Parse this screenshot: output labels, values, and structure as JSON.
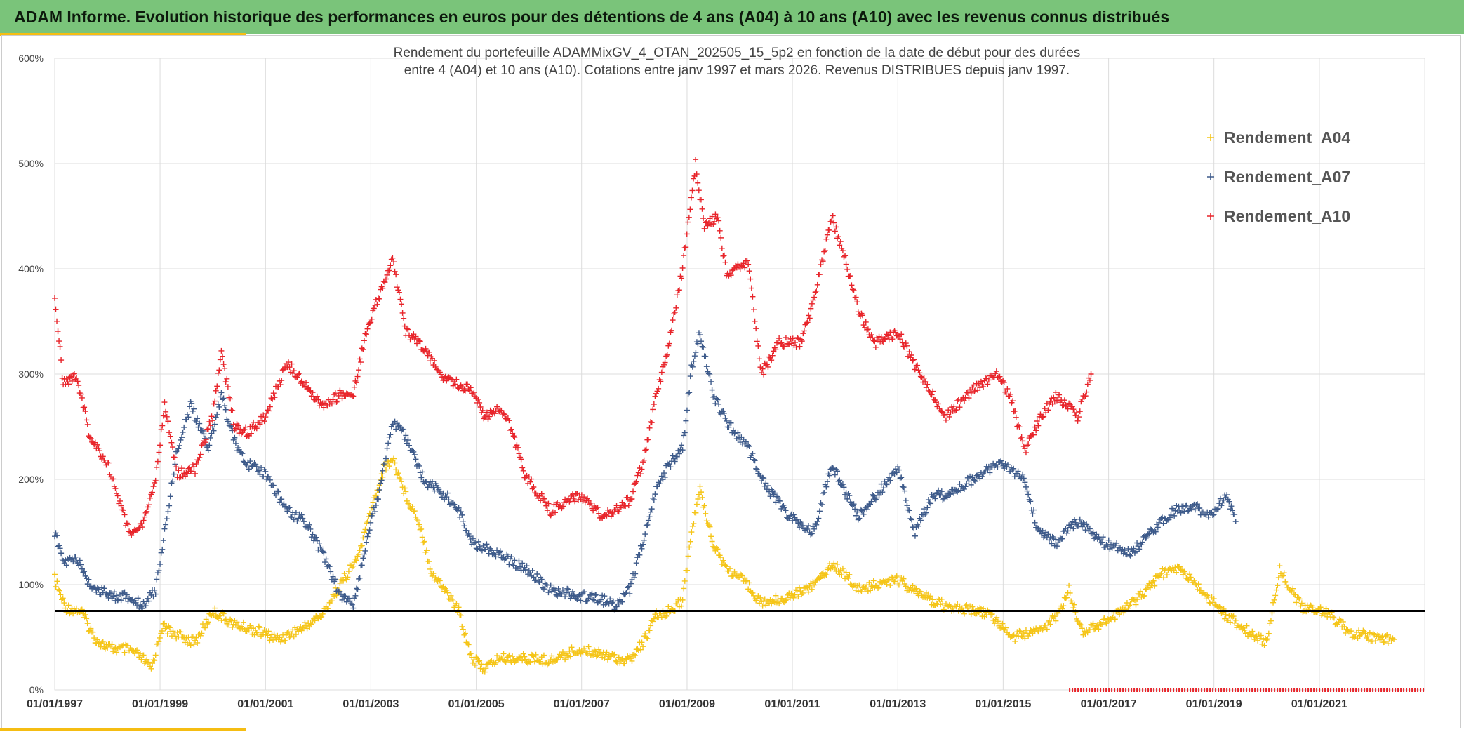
{
  "banner": {
    "title": "ADAM Informe. Evolution historique des performances en euros pour des détentions de 4 ans (A04) à 10 ans (A10) avec les revenus connus distribués"
  },
  "chart_data": {
    "type": "scatter",
    "title_line1": "Rendement du portefeuille ADAMMixGV_4_OTAN_202505_15_5p2  en fonction de la date de début pour des durées",
    "title_line2": "entre 4 (A04) et 10 ans (A10). Cotations entre janv 1997 et mars 2026. Revenus DISTRIBUES depuis janv 1997.",
    "x_range": [
      "1997-01-01",
      "2023-01-01"
    ],
    "ylim": [
      0,
      600
    ],
    "y_ticks": [
      0,
      100,
      200,
      300,
      400,
      500,
      600
    ],
    "y_tick_labels": [
      "0%",
      "100%",
      "200%",
      "300%",
      "400%",
      "500%",
      "600%"
    ],
    "x_tick_labels": [
      "01/01/1997",
      "01/01/1999",
      "01/01/2001",
      "01/01/2003",
      "01/01/2005",
      "01/01/2007",
      "01/01/2009",
      "01/01/2011",
      "01/01/2013",
      "01/01/2015",
      "01/01/2017",
      "01/01/2019",
      "01/01/2021"
    ],
    "grid": true,
    "legend_position": "top-right",
    "reference_line": {
      "y": 75,
      "color": "#000000"
    },
    "series": [
      {
        "name": "Rendement_A04",
        "color": "#f5c518",
        "points": [
          [
            "1997-01-01",
            105
          ],
          [
            "1997-03-15",
            78
          ],
          [
            "1997-07-01",
            75
          ],
          [
            "1997-10-01",
            50
          ],
          [
            "1998-01-01",
            40
          ],
          [
            "1998-06-01",
            38
          ],
          [
            "1998-09-01",
            30
          ],
          [
            "1998-11-01",
            20
          ],
          [
            "1999-01-15",
            60
          ],
          [
            "1999-05-01",
            52
          ],
          [
            "1999-09-01",
            45
          ],
          [
            "2000-01-01",
            75
          ],
          [
            "2000-06-01",
            62
          ],
          [
            "2000-12-01",
            55
          ],
          [
            "2001-04-01",
            48
          ],
          [
            "2001-10-01",
            60
          ],
          [
            "2002-02-01",
            72
          ],
          [
            "2002-06-01",
            100
          ],
          [
            "2002-10-01",
            125
          ],
          [
            "2003-01-01",
            170
          ],
          [
            "2003-04-01",
            210
          ],
          [
            "2003-06-01",
            220
          ],
          [
            "2003-09-01",
            185
          ],
          [
            "2003-12-01",
            160
          ],
          [
            "2004-03-01",
            110
          ],
          [
            "2004-06-01",
            95
          ],
          [
            "2004-09-01",
            75
          ],
          [
            "2004-12-01",
            30
          ],
          [
            "2005-03-01",
            20
          ],
          [
            "2005-06-01",
            30
          ],
          [
            "2005-12-01",
            30
          ],
          [
            "2006-06-01",
            28
          ],
          [
            "2006-12-01",
            38
          ],
          [
            "2007-06-01",
            35
          ],
          [
            "2007-09-01",
            30
          ],
          [
            "2007-12-01",
            28
          ],
          [
            "2008-03-01",
            45
          ],
          [
            "2008-06-01",
            70
          ],
          [
            "2008-09-01",
            75
          ],
          [
            "2008-12-01",
            85
          ],
          [
            "2009-02-01",
            150
          ],
          [
            "2009-04-01",
            190
          ],
          [
            "2009-07-01",
            140
          ],
          [
            "2009-10-01",
            115
          ],
          [
            "2010-03-01",
            100
          ],
          [
            "2010-06-01",
            82
          ],
          [
            "2010-12-01",
            88
          ],
          [
            "2011-06-01",
            100
          ],
          [
            "2011-10-01",
            120
          ],
          [
            "2012-01-01",
            110
          ],
          [
            "2012-04-01",
            95
          ],
          [
            "2012-08-01",
            100
          ],
          [
            "2013-01-01",
            105
          ],
          [
            "2013-06-01",
            90
          ],
          [
            "2013-12-01",
            80
          ],
          [
            "2014-06-01",
            75
          ],
          [
            "2014-10-01",
            72
          ],
          [
            "2015-03-01",
            50
          ],
          [
            "2015-09-01",
            55
          ],
          [
            "2016-01-01",
            68
          ],
          [
            "2016-04-01",
            95
          ],
          [
            "2016-07-01",
            55
          ],
          [
            "2016-12-01",
            65
          ],
          [
            "2017-04-01",
            75
          ],
          [
            "2017-08-01",
            88
          ],
          [
            "2018-01-01",
            110
          ],
          [
            "2018-05-01",
            115
          ],
          [
            "2018-09-01",
            100
          ],
          [
            "2019-01-01",
            82
          ],
          [
            "2019-04-01",
            70
          ],
          [
            "2019-09-01",
            55
          ],
          [
            "2020-01-01",
            45
          ],
          [
            "2020-04-01",
            115
          ],
          [
            "2020-09-01",
            78
          ],
          [
            "2021-02-01",
            75
          ],
          [
            "2021-08-01",
            55
          ],
          [
            "2022-01-01",
            50
          ],
          [
            "2022-06-01",
            48
          ]
        ]
      },
      {
        "name": "Rendement_A07",
        "color": "#3d5a8a",
        "points": [
          [
            "1997-01-01",
            150
          ],
          [
            "1997-03-01",
            120
          ],
          [
            "1997-06-01",
            125
          ],
          [
            "1997-09-01",
            100
          ],
          [
            "1998-01-01",
            90
          ],
          [
            "1998-06-01",
            88
          ],
          [
            "1998-09-01",
            80
          ],
          [
            "1998-12-01",
            95
          ],
          [
            "1999-02-01",
            150
          ],
          [
            "1999-05-01",
            230
          ],
          [
            "1999-08-01",
            270
          ],
          [
            "1999-12-01",
            230
          ],
          [
            "2000-03-01",
            280
          ],
          [
            "2000-06-01",
            235
          ],
          [
            "2000-09-01",
            215
          ],
          [
            "2001-01-01",
            205
          ],
          [
            "2001-06-01",
            170
          ],
          [
            "2001-10-01",
            160
          ],
          [
            "2002-02-01",
            130
          ],
          [
            "2002-06-01",
            90
          ],
          [
            "2002-09-01",
            80
          ],
          [
            "2002-12-01",
            140
          ],
          [
            "2003-03-01",
            190
          ],
          [
            "2003-06-01",
            255
          ],
          [
            "2003-09-01",
            240
          ],
          [
            "2004-01-01",
            200
          ],
          [
            "2004-06-01",
            185
          ],
          [
            "2004-09-01",
            170
          ],
          [
            "2004-12-01",
            140
          ],
          [
            "2005-06-01",
            130
          ],
          [
            "2005-12-01",
            115
          ],
          [
            "2006-06-01",
            95
          ],
          [
            "2006-12-01",
            90
          ],
          [
            "2007-06-01",
            85
          ],
          [
            "2007-09-01",
            80
          ],
          [
            "2007-12-01",
            95
          ],
          [
            "2008-03-01",
            140
          ],
          [
            "2008-06-01",
            190
          ],
          [
            "2008-09-01",
            215
          ],
          [
            "2008-12-01",
            230
          ],
          [
            "2009-02-01",
            305
          ],
          [
            "2009-04-01",
            340
          ],
          [
            "2009-07-01",
            280
          ],
          [
            "2009-10-01",
            255
          ],
          [
            "2010-03-01",
            230
          ],
          [
            "2010-06-01",
            200
          ],
          [
            "2010-12-01",
            165
          ],
          [
            "2011-06-01",
            150
          ],
          [
            "2011-10-01",
            215
          ],
          [
            "2012-01-01",
            190
          ],
          [
            "2012-04-01",
            165
          ],
          [
            "2012-08-01",
            185
          ],
          [
            "2013-01-01",
            210
          ],
          [
            "2013-05-01",
            150
          ],
          [
            "2013-09-01",
            185
          ],
          [
            "2014-01-01",
            185
          ],
          [
            "2014-06-01",
            200
          ],
          [
            "2014-12-01",
            215
          ],
          [
            "2015-06-01",
            200
          ],
          [
            "2015-09-01",
            150
          ],
          [
            "2016-01-01",
            140
          ],
          [
            "2016-06-01",
            160
          ],
          [
            "2016-12-01",
            140
          ],
          [
            "2017-06-01",
            130
          ],
          [
            "2017-12-01",
            155
          ],
          [
            "2018-04-01",
            170
          ],
          [
            "2018-08-01",
            175
          ],
          [
            "2018-12-01",
            165
          ],
          [
            "2019-04-01",
            185
          ],
          [
            "2019-06-01",
            160
          ]
        ]
      },
      {
        "name": "Rendement_A10",
        "color": "#e8242a",
        "points": [
          [
            "1997-01-01",
            375
          ],
          [
            "1997-03-01",
            290
          ],
          [
            "1997-06-01",
            300
          ],
          [
            "1997-09-01",
            240
          ],
          [
            "1998-01-01",
            215
          ],
          [
            "1998-06-01",
            150
          ],
          [
            "1998-09-01",
            155
          ],
          [
            "1998-12-01",
            200
          ],
          [
            "1999-02-01",
            270
          ],
          [
            "1999-05-01",
            205
          ],
          [
            "1999-09-01",
            210
          ],
          [
            "2000-01-01",
            260
          ],
          [
            "2000-03-01",
            320
          ],
          [
            "2000-06-01",
            250
          ],
          [
            "2000-09-01",
            245
          ],
          [
            "2001-01-01",
            260
          ],
          [
            "2001-06-01",
            310
          ],
          [
            "2001-10-01",
            290
          ],
          [
            "2002-02-01",
            270
          ],
          [
            "2002-06-01",
            280
          ],
          [
            "2002-09-01",
            280
          ],
          [
            "2002-12-01",
            340
          ],
          [
            "2003-03-01",
            375
          ],
          [
            "2003-06-01",
            410
          ],
          [
            "2003-09-01",
            340
          ],
          [
            "2004-01-01",
            325
          ],
          [
            "2004-06-01",
            295
          ],
          [
            "2004-12-01",
            285
          ],
          [
            "2005-03-01",
            260
          ],
          [
            "2005-06-01",
            265
          ],
          [
            "2005-09-01",
            250
          ],
          [
            "2005-12-01",
            205
          ],
          [
            "2006-06-01",
            170
          ],
          [
            "2006-12-01",
            185
          ],
          [
            "2007-06-01",
            165
          ],
          [
            "2007-12-01",
            180
          ],
          [
            "2008-03-01",
            215
          ],
          [
            "2008-06-01",
            280
          ],
          [
            "2008-09-01",
            330
          ],
          [
            "2008-12-01",
            400
          ],
          [
            "2009-03-01",
            500
          ],
          [
            "2009-05-01",
            440
          ],
          [
            "2009-08-01",
            450
          ],
          [
            "2009-10-01",
            395
          ],
          [
            "2010-03-01",
            405
          ],
          [
            "2010-06-01",
            300
          ],
          [
            "2010-10-01",
            330
          ],
          [
            "2011-03-01",
            330
          ],
          [
            "2011-06-01",
            370
          ],
          [
            "2011-10-01",
            450
          ],
          [
            "2012-01-01",
            410
          ],
          [
            "2012-04-01",
            360
          ],
          [
            "2012-08-01",
            330
          ],
          [
            "2013-01-01",
            340
          ],
          [
            "2013-06-01",
            300
          ],
          [
            "2013-12-01",
            260
          ],
          [
            "2014-06-01",
            285
          ],
          [
            "2014-12-01",
            300
          ],
          [
            "2015-03-01",
            275
          ],
          [
            "2015-06-01",
            225
          ],
          [
            "2015-09-01",
            255
          ],
          [
            "2016-01-01",
            280
          ],
          [
            "2016-06-01",
            260
          ],
          [
            "2016-09-01",
            300
          ]
        ]
      }
    ],
    "baseline_marker": {
      "color": "#e8242a",
      "x_range": [
        "2016-04-01",
        "2023-01-01"
      ],
      "y": 0
    }
  }
}
